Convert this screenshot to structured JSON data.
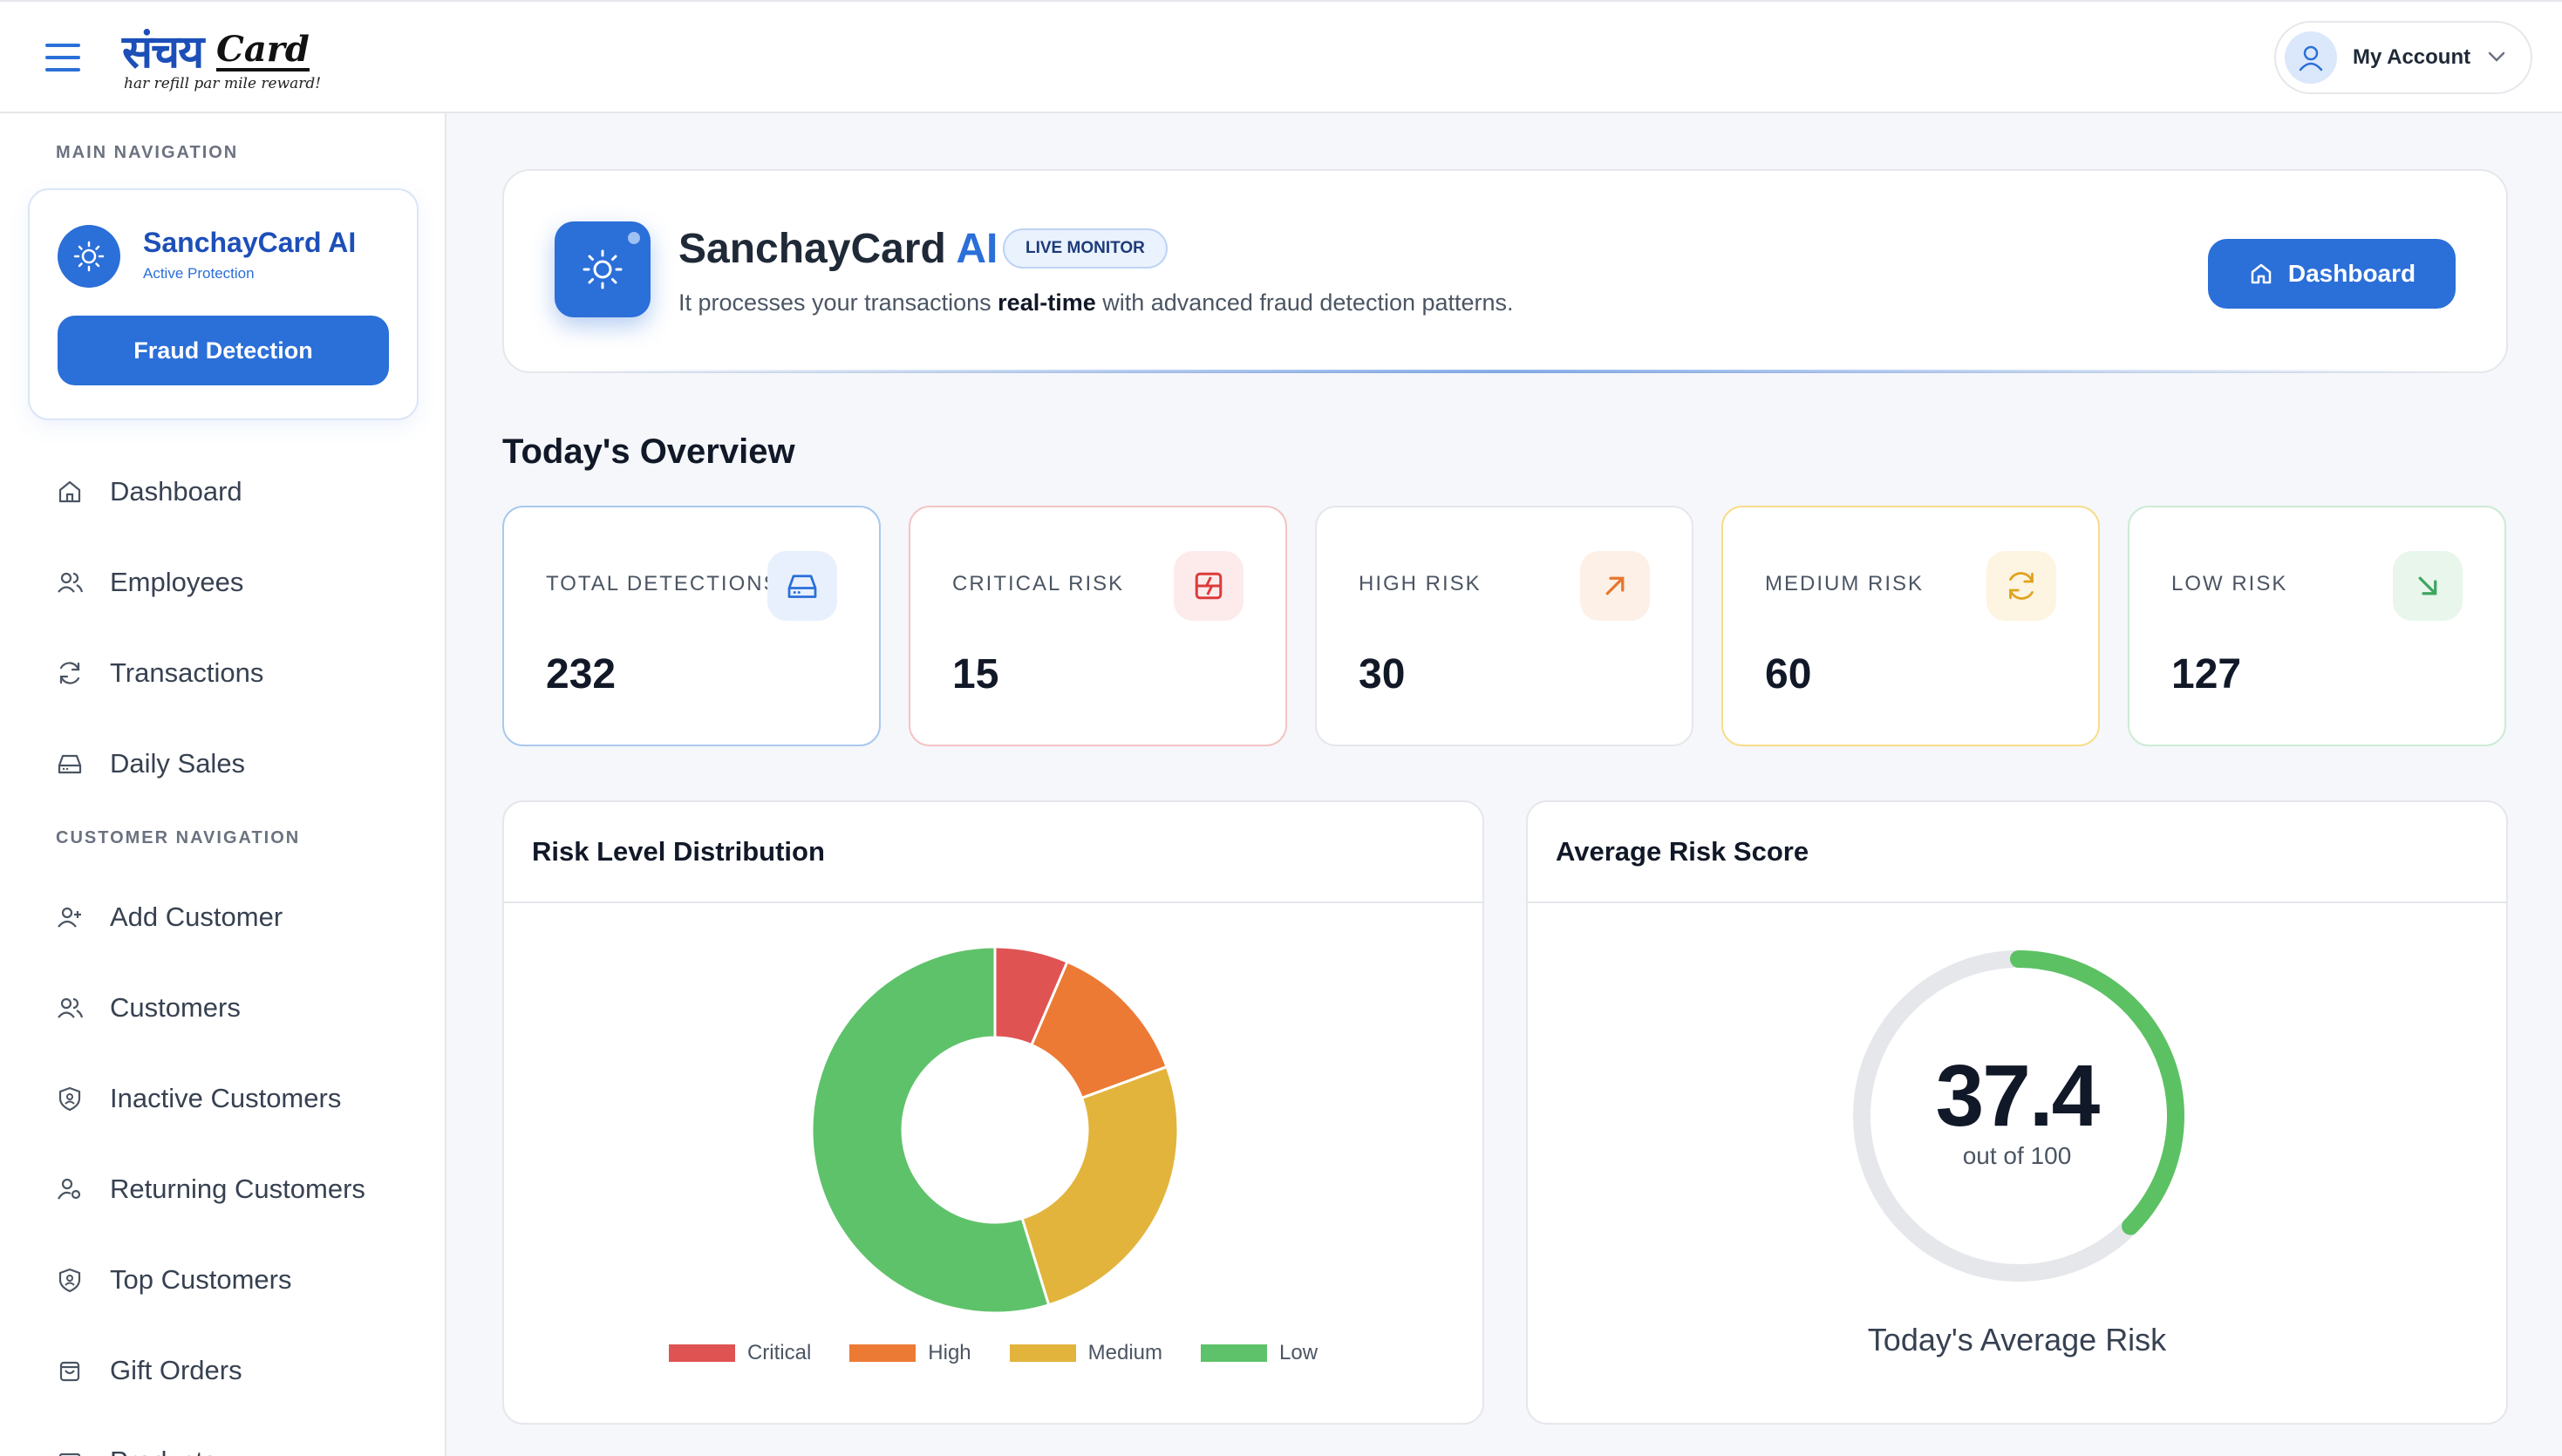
{
  "header": {
    "logo_text": "संचय",
    "logo_card": "Card",
    "logo_tagline": "har refill par mile reward!",
    "account_label": "My Account"
  },
  "sidebar": {
    "main_heading": "MAIN NAVIGATION",
    "ai_card": {
      "title": "SanchayCard AI",
      "subtitle": "Active Protection",
      "button": "Fraud Detection"
    },
    "main_items": [
      {
        "label": "Dashboard",
        "icon": "home-icon"
      },
      {
        "label": "Employees",
        "icon": "users-icon"
      },
      {
        "label": "Transactions",
        "icon": "refresh-icon"
      },
      {
        "label": "Daily Sales",
        "icon": "drive-icon"
      }
    ],
    "customer_heading": "CUSTOMER NAVIGATION",
    "customer_items": [
      {
        "label": "Add Customer",
        "icon": "user-plus-icon"
      },
      {
        "label": "Customers",
        "icon": "users-icon"
      },
      {
        "label": "Inactive Customers",
        "icon": "shield-icon"
      },
      {
        "label": "Returning Customers",
        "icon": "user-cog-icon"
      },
      {
        "label": "Top Customers",
        "icon": "shield-icon"
      },
      {
        "label": "Gift Orders",
        "icon": "shopping-bag-icon"
      },
      {
        "label": "Products",
        "icon": "box-icon"
      }
    ]
  },
  "hero": {
    "title_main": "SanchayCard",
    "title_ai": "AI",
    "badge": "LIVE MONITOR",
    "desc_pre": "It processes your transactions ",
    "desc_bold": "real-time",
    "desc_post": " with advanced fraud detection patterns.",
    "button": "Dashboard"
  },
  "overview": {
    "title": "Today's Overview",
    "cards": [
      {
        "label": "TOTAL DETECTIONS",
        "value": "232",
        "icon": "drive-icon",
        "color": "#2b6fd8",
        "tint": "#e8f0fd",
        "border": "#a9c9ee"
      },
      {
        "label": "CRITICAL RISK",
        "value": "15",
        "icon": "alert-grid-icon",
        "color": "#dc3b3b",
        "tint": "#fdebeb",
        "border": "#f4c4c4"
      },
      {
        "label": "HIGH RISK",
        "value": "30",
        "icon": "arrow-up-right-icon",
        "color": "#e8762d",
        "tint": "#fdf0e6",
        "border": "#e5e7eb"
      },
      {
        "label": "MEDIUM RISK",
        "value": "60",
        "icon": "refresh-icon",
        "color": "#e0a21d",
        "tint": "#fdf4e1",
        "border": "#f7dd8a"
      },
      {
        "label": "LOW RISK",
        "value": "127",
        "icon": "arrow-down-right-icon",
        "color": "#3da560",
        "tint": "#e8f6ec",
        "border": "#cdebd5"
      }
    ]
  },
  "distribution": {
    "title": "Risk Level Distribution"
  },
  "average": {
    "title": "Average Risk Score",
    "value": "37.4",
    "sub": "out of 100",
    "caption": "Today's Average Risk",
    "score": 37.4,
    "max": 100,
    "color": "#5cc163",
    "track": "#e5e7eb"
  },
  "chart_data": {
    "type": "pie",
    "categories": [
      "Critical",
      "High",
      "Medium",
      "Low"
    ],
    "values": [
      15,
      30,
      60,
      127
    ],
    "colors": [
      "#e05353",
      "#ec7a34",
      "#e2b43c",
      "#5ec26a"
    ],
    "legend": "bottom"
  }
}
